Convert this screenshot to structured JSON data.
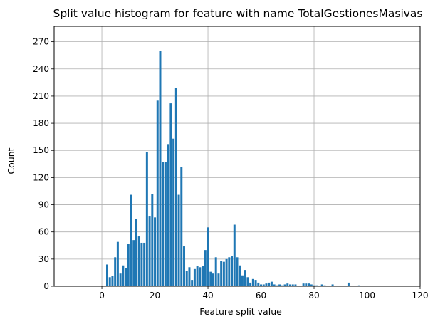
{
  "chart_data": {
    "type": "bar",
    "title": "Split value histogram for feature with name TotalGestionesMasivas",
    "xlabel": "Feature split value",
    "ylabel": "Count",
    "xlim": [
      -18,
      120
    ],
    "ylim": [
      0,
      287
    ],
    "x_ticks": [
      0,
      20,
      40,
      60,
      80,
      100,
      120
    ],
    "y_ticks": [
      0,
      30,
      60,
      90,
      120,
      150,
      180,
      210,
      240,
      270
    ],
    "grid": true,
    "bar_color": "#1f77b4",
    "bar_width": 0.8,
    "x": [
      2,
      3,
      4,
      5,
      6,
      7,
      8,
      9,
      10,
      11,
      12,
      13,
      14,
      15,
      16,
      17,
      18,
      19,
      20,
      21,
      22,
      23,
      24,
      25,
      26,
      27,
      28,
      29,
      30,
      31,
      32,
      33,
      34,
      35,
      36,
      37,
      38,
      39,
      40,
      41,
      42,
      43,
      44,
      45,
      46,
      47,
      48,
      49,
      50,
      51,
      52,
      53,
      54,
      55,
      56,
      57,
      58,
      59,
      60,
      61,
      62,
      63,
      64,
      65,
      66,
      67,
      68,
      69,
      70,
      71,
      72,
      73,
      74,
      75,
      76,
      77,
      78,
      79,
      80,
      81,
      82,
      83,
      84,
      85,
      86,
      87,
      88,
      89,
      90,
      91,
      92,
      93,
      94,
      95,
      96,
      97,
      98,
      99,
      100,
      101,
      102,
      103,
      104,
      105,
      106,
      107,
      108,
      109,
      110,
      111,
      112,
      113,
      114,
      115,
      116,
      117,
      118
    ],
    "values": [
      24,
      10,
      11,
      32,
      49,
      14,
      23,
      20,
      47,
      101,
      51,
      74,
      55,
      48,
      48,
      148,
      77,
      102,
      76,
      205,
      260,
      137,
      137,
      157,
      202,
      163,
      219,
      101,
      132,
      44,
      17,
      21,
      7,
      19,
      22,
      21,
      22,
      40,
      65,
      16,
      14,
      32,
      14,
      28,
      27,
      30,
      32,
      33,
      68,
      32,
      23,
      12,
      18,
      10,
      4,
      8,
      7,
      4,
      2,
      2,
      3,
      4,
      5,
      2,
      1,
      2,
      1,
      2,
      3,
      2,
      2,
      2,
      0,
      0,
      3,
      3,
      3,
      2,
      1,
      1,
      0,
      2,
      1,
      0,
      0,
      2,
      0,
      0,
      0,
      0,
      0,
      4,
      0,
      0,
      0,
      1,
      0,
      0,
      0,
      0,
      0,
      0,
      0,
      0,
      0,
      0,
      0,
      0,
      0,
      0,
      0,
      0,
      0,
      0,
      0,
      0,
      0
    ]
  }
}
